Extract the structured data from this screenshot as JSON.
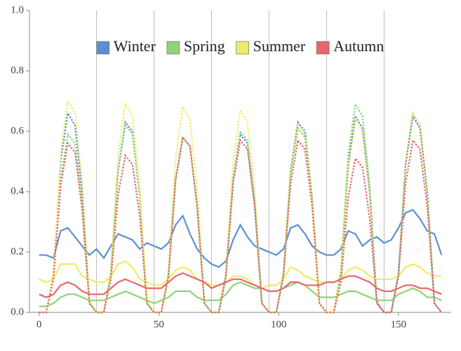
{
  "chart_data": {
    "type": "line",
    "x": [
      0,
      3,
      6,
      9,
      12,
      15,
      18,
      21,
      24,
      27,
      30,
      33,
      36,
      39,
      42,
      45,
      48,
      51,
      54,
      57,
      60,
      63,
      66,
      69,
      72,
      75,
      78,
      81,
      84,
      87,
      90,
      93,
      96,
      99,
      102,
      105,
      108,
      111,
      114,
      117,
      120,
      123,
      126,
      129,
      132,
      135,
      138,
      141,
      144,
      147,
      150,
      153,
      156,
      159,
      162,
      165,
      168
    ],
    "xlim": [
      -4,
      172
    ],
    "xticks": [
      0,
      50,
      100,
      150
    ],
    "xgrid": [
      24,
      48,
      72,
      96,
      120,
      144
    ],
    "ylim": [
      0,
      1
    ],
    "yticks": [
      {
        "value": 0,
        "label": "0.0"
      },
      0.2,
      0.4,
      0.6,
      0.8,
      {
        "value": 1,
        "label": "1.0"
      }
    ],
    "legend": "top",
    "series": [
      {
        "name": "Winter",
        "color": "#5b8fd1",
        "values": [
          0.19,
          0.19,
          0.18,
          0.27,
          0.28,
          0.25,
          0.22,
          0.19,
          0.21,
          0.18,
          0.22,
          0.26,
          0.25,
          0.24,
          0.21,
          0.23,
          0.22,
          0.21,
          0.23,
          0.29,
          0.32,
          0.26,
          0.21,
          0.18,
          0.16,
          0.15,
          0.17,
          0.24,
          0.29,
          0.25,
          0.22,
          0.21,
          0.2,
          0.19,
          0.21,
          0.28,
          0.29,
          0.26,
          0.22,
          0.2,
          0.19,
          0.19,
          0.21,
          0.27,
          0.26,
          0.22,
          0.24,
          0.25,
          0.23,
          0.24,
          0.28,
          0.33,
          0.34,
          0.31,
          0.27,
          0.26,
          0.19
        ],
        "peak_values": [
          0,
          0,
          0.13,
          0.5,
          0.66,
          0.62,
          0.4,
          0.03,
          0,
          0,
          0.13,
          0.47,
          0.63,
          0.6,
          0.38,
          0.03,
          0,
          0,
          0.12,
          0.44,
          0.58,
          0.55,
          0.35,
          0.03,
          0,
          0,
          0.12,
          0.44,
          0.59,
          0.56,
          0.36,
          0.03,
          0,
          0,
          0.13,
          0.47,
          0.63,
          0.6,
          0.38,
          0.03,
          0,
          0,
          0.13,
          0.49,
          0.65,
          0.61,
          0.4,
          0.03,
          0,
          0,
          0.13,
          0.49,
          0.65,
          0.61,
          0.4,
          0.03,
          0
        ]
      },
      {
        "name": "Spring",
        "color": "#8fd47a",
        "values": [
          0.02,
          0.02,
          0.03,
          0.05,
          0.06,
          0.06,
          0.05,
          0.04,
          0.04,
          0.04,
          0.05,
          0.06,
          0.07,
          0.06,
          0.05,
          0.04,
          0.03,
          0.04,
          0.05,
          0.07,
          0.07,
          0.07,
          0.05,
          0.04,
          0.04,
          0.04,
          0.06,
          0.09,
          0.1,
          0.09,
          0.08,
          0.08,
          0.07,
          0.07,
          0.08,
          0.09,
          0.1,
          0.09,
          0.07,
          0.05,
          0.05,
          0.05,
          0.06,
          0.07,
          0.07,
          0.06,
          0.05,
          0.04,
          0.04,
          0.04,
          0.06,
          0.07,
          0.08,
          0.07,
          0.05,
          0.05,
          0.04
        ],
        "peak_values": [
          0,
          0,
          0.12,
          0.44,
          0.59,
          0.56,
          0.36,
          0.03,
          0,
          0,
          0.13,
          0.47,
          0.62,
          0.59,
          0.38,
          0.03,
          0,
          0,
          0.12,
          0.44,
          0.58,
          0.55,
          0.35,
          0.03,
          0,
          0,
          0.12,
          0.45,
          0.6,
          0.57,
          0.37,
          0.03,
          0,
          0,
          0.12,
          0.46,
          0.61,
          0.58,
          0.37,
          0.03,
          0,
          0,
          0.14,
          0.52,
          0.69,
          0.65,
          0.42,
          0.04,
          0,
          0,
          0.13,
          0.5,
          0.66,
          0.62,
          0.4,
          0.03,
          0
        ]
      },
      {
        "name": "Summer",
        "color": "#eeea6a",
        "values": [
          0.11,
          0.1,
          0.11,
          0.16,
          0.16,
          0.16,
          0.12,
          0.11,
          0.1,
          0.1,
          0.12,
          0.16,
          0.17,
          0.15,
          0.11,
          0.1,
          0.09,
          0.09,
          0.11,
          0.14,
          0.15,
          0.14,
          0.11,
          0.1,
          0.09,
          0.09,
          0.1,
          0.12,
          0.12,
          0.11,
          0.09,
          0.08,
          0.09,
          0.09,
          0.11,
          0.15,
          0.14,
          0.12,
          0.11,
          0.1,
          0.1,
          0.1,
          0.11,
          0.14,
          0.15,
          0.14,
          0.12,
          0.11,
          0.11,
          0.11,
          0.12,
          0.15,
          0.16,
          0.15,
          0.13,
          0.12,
          0.12
        ],
        "peak_values": [
          0,
          0,
          0.14,
          0.53,
          0.7,
          0.66,
          0.43,
          0.04,
          0,
          0,
          0.14,
          0.52,
          0.69,
          0.65,
          0.42,
          0.04,
          0,
          0,
          0.14,
          0.51,
          0.68,
          0.64,
          0.41,
          0.03,
          0,
          0,
          0.14,
          0.5,
          0.67,
          0.63,
          0.41,
          0.03,
          0,
          0,
          0.13,
          0.47,
          0.62,
          0.59,
          0.38,
          0.03,
          0,
          0,
          0.13,
          0.48,
          0.64,
          0.6,
          0.39,
          0.03,
          0,
          0,
          0.13,
          0.5,
          0.66,
          0.62,
          0.4,
          0.03,
          0
        ]
      },
      {
        "name": "Autumn",
        "color": "#e8686a",
        "values": [
          0.06,
          0.05,
          0.06,
          0.09,
          0.1,
          0.09,
          0.07,
          0.06,
          0.06,
          0.06,
          0.08,
          0.1,
          0.11,
          0.1,
          0.09,
          0.08,
          0.08,
          0.08,
          0.1,
          0.12,
          0.13,
          0.12,
          0.11,
          0.1,
          0.08,
          0.09,
          0.1,
          0.11,
          0.11,
          0.1,
          0.09,
          0.08,
          0.07,
          0.07,
          0.08,
          0.1,
          0.1,
          0.09,
          0.09,
          0.09,
          0.1,
          0.1,
          0.11,
          0.12,
          0.12,
          0.11,
          0.1,
          0.08,
          0.07,
          0.07,
          0.08,
          0.09,
          0.09,
          0.08,
          0.08,
          0.07,
          0.06
        ],
        "peak_values": [
          0,
          0,
          0.11,
          0.42,
          0.56,
          0.53,
          0.34,
          0.03,
          0,
          0,
          0.11,
          0.39,
          0.52,
          0.49,
          0.32,
          0.03,
          0,
          0,
          0.12,
          0.44,
          0.58,
          0.55,
          0.35,
          0.03,
          0,
          0,
          0.12,
          0.43,
          0.57,
          0.54,
          0.35,
          0.03,
          0,
          0,
          0.12,
          0.43,
          0.57,
          0.54,
          0.35,
          0.03,
          0,
          0,
          0.1,
          0.38,
          0.51,
          0.48,
          0.31,
          0.03,
          0,
          0,
          0.12,
          0.43,
          0.57,
          0.54,
          0.35,
          0.03,
          0
        ]
      }
    ]
  }
}
